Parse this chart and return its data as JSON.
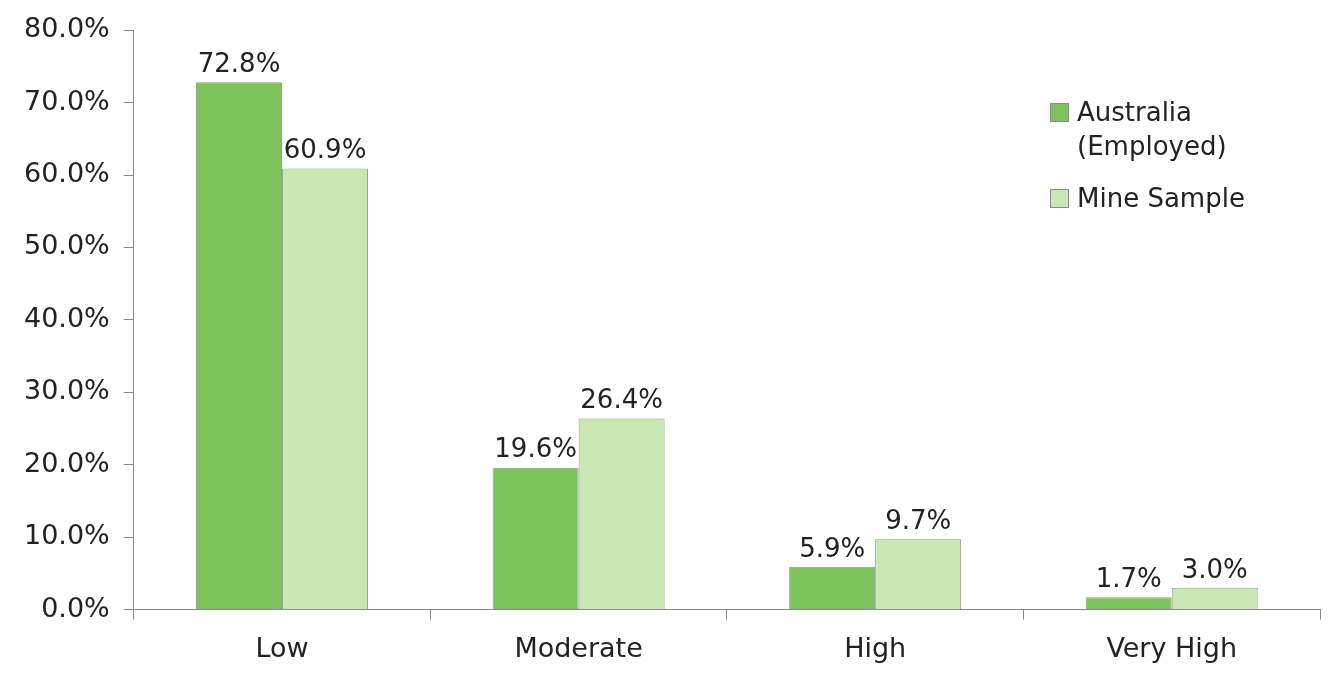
{
  "chart_data": {
    "type": "bar",
    "categories": [
      "Low",
      "Moderate",
      "High",
      "Very High"
    ],
    "series": [
      {
        "name": "Australia (Employed)",
        "color": "#7dc35b",
        "values": [
          72.8,
          19.6,
          5.9,
          1.7
        ],
        "value_labels": [
          "72.8%",
          "19.6%",
          "5.9%",
          "1.7%"
        ]
      },
      {
        "name": "Mine Sample",
        "color": "#c9e8b3",
        "values": [
          60.9,
          26.4,
          9.7,
          3.0
        ],
        "value_labels": [
          "60.9%",
          "26.4%",
          "9.7%",
          "3.0%"
        ]
      }
    ],
    "ylim": [
      0,
      80
    ],
    "yticks": [
      {
        "value": 0,
        "label": "0.0%"
      },
      {
        "value": 10,
        "label": "10.0%"
      },
      {
        "value": 20,
        "label": "20.0%"
      },
      {
        "value": 30,
        "label": "30.0%"
      },
      {
        "value": 40,
        "label": "40.0%"
      },
      {
        "value": 50,
        "label": "50.0%"
      },
      {
        "value": 60,
        "label": "60.0%"
      },
      {
        "value": 70,
        "label": "70.0%"
      },
      {
        "value": 80,
        "label": "80.0%"
      }
    ],
    "grid": false,
    "legend": "top right"
  }
}
